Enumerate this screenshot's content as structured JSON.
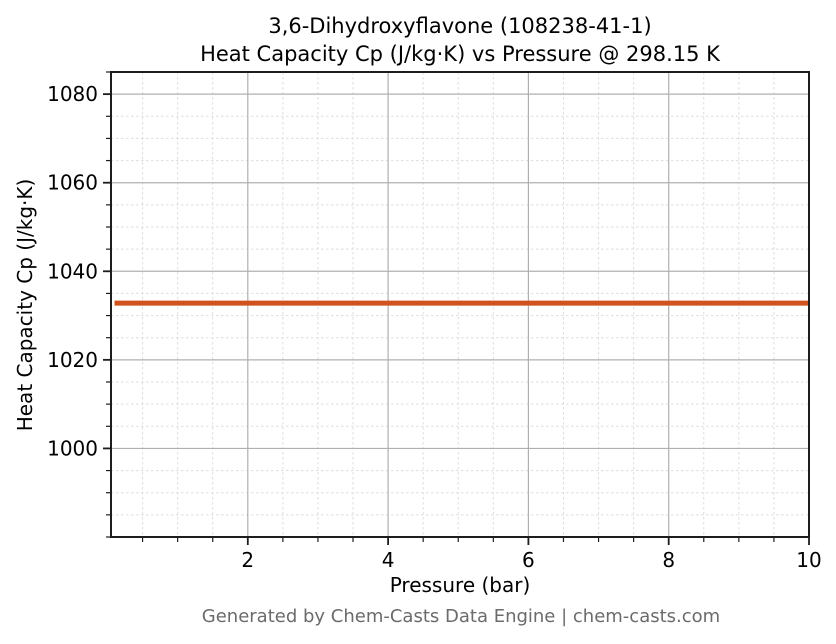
{
  "chart": {
    "title_line1": "3,6-Dihydroxyflavone (108238-41-1)",
    "title_line2": "Heat Capacity Cp (J/kg·K) vs Pressure @ 298.15 K",
    "xlabel": "Pressure (bar)",
    "ylabel": "Heat Capacity Cp (J/kg·K)",
    "footer": "Generated by Chem-Casts Data Engine | chem-casts.com"
  },
  "chart_data": {
    "type": "line",
    "title": "3,6-Dihydroxyflavone (108238-41-1) — Heat Capacity Cp (J/kg·K) vs Pressure @ 298.15 K",
    "xlabel": "Pressure (bar)",
    "ylabel": "Heat Capacity Cp (J/kg·K)",
    "xlim": [
      0.05,
      10
    ],
    "ylim": [
      980,
      1085
    ],
    "x_major_ticks": [
      2,
      4,
      6,
      8,
      10
    ],
    "y_major_ticks": [
      1000,
      1020,
      1040,
      1060,
      1080
    ],
    "x_minor_step": 0.5,
    "y_minor_step": 5,
    "grid": {
      "major": true,
      "minor": true
    },
    "legend": "none",
    "series": [
      {
        "name": "Heat Capacity Cp",
        "color": "#d0521d",
        "linewidth": 5,
        "x": [
          0.1,
          10
        ],
        "y": [
          1032.8,
          1032.8
        ]
      }
    ]
  },
  "colors": {
    "series_line": "#d0521d",
    "grid_major": "#b0b0b0",
    "grid_minor": "#dddddd",
    "spine": "#1d1d1d",
    "tick": "#1d1d1d",
    "text": "#000000",
    "footer_text": "#6b6b6b",
    "background": "#ffffff"
  }
}
